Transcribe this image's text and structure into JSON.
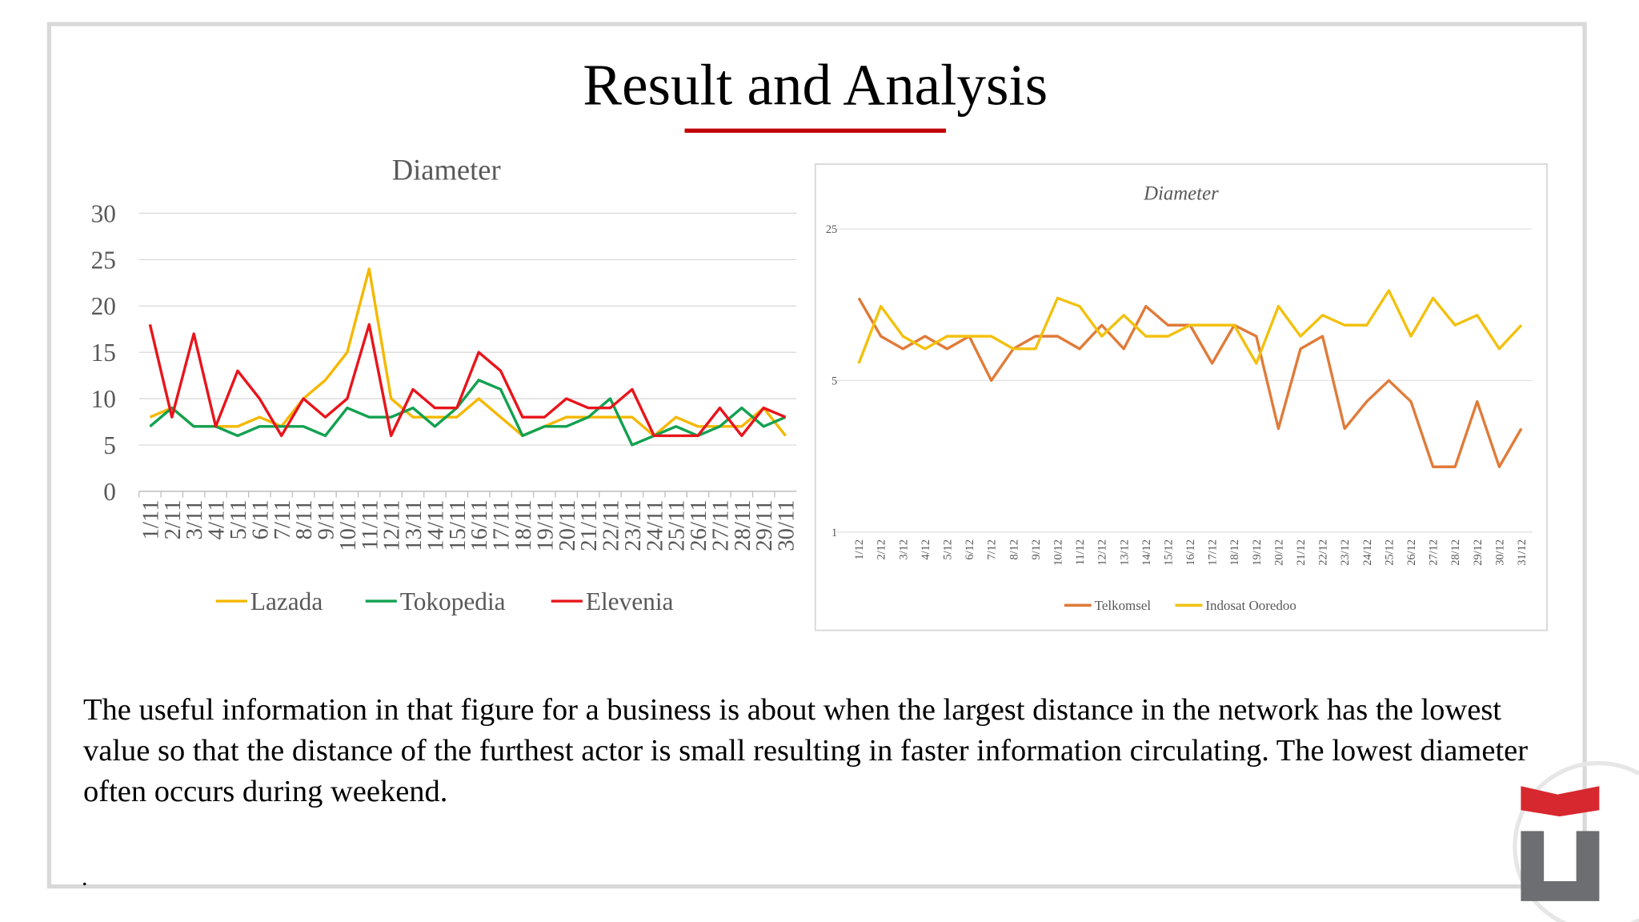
{
  "title": "Result and Analysis",
  "body": "The useful information in that figure for a business is about when the largest distance in the network has the lowest value so that the distance of the furthest actor is small resulting in faster information circulating. The lowest diameter often occurs during weekend.",
  "footnote": ".",
  "chart_data": [
    {
      "type": "line",
      "title": "Diameter",
      "categories": [
        "1/11",
        "2/11",
        "3/11",
        "4/11",
        "5/11",
        "6/11",
        "7/11",
        "8/11",
        "9/11",
        "10/11",
        "11/11",
        "12/11",
        "13/11",
        "14/11",
        "15/11",
        "16/11",
        "17/11",
        "18/11",
        "19/11",
        "20/11",
        "21/11",
        "22/11",
        "23/11",
        "24/11",
        "25/11",
        "26/11",
        "27/11",
        "28/11",
        "29/11",
        "30/11"
      ],
      "series": [
        {
          "name": "Lazada",
          "color": "#f5b800",
          "values": [
            8,
            9,
            7,
            7,
            7,
            8,
            7,
            10,
            12,
            15,
            24,
            10,
            8,
            8,
            8,
            10,
            8,
            6,
            7,
            8,
            8,
            8,
            8,
            6,
            8,
            7,
            7,
            7,
            9,
            6
          ]
        },
        {
          "name": "Tokopedia",
          "color": "#12a150",
          "values": [
            7,
            9,
            7,
            7,
            6,
            7,
            7,
            7,
            6,
            9,
            8,
            8,
            9,
            7,
            9,
            12,
            11,
            6,
            7,
            7,
            8,
            10,
            5,
            6,
            7,
            6,
            7,
            9,
            7,
            8
          ]
        },
        {
          "name": "Elevenia",
          "color": "#e8141b",
          "values": [
            18,
            8,
            17,
            7,
            13,
            10,
            6,
            10,
            8,
            10,
            18,
            6,
            11,
            9,
            9,
            15,
            13,
            8,
            8,
            10,
            9,
            9,
            11,
            6,
            6,
            6,
            9,
            6,
            9,
            8
          ]
        }
      ],
      "ylim": [
        0,
        30
      ],
      "yticks": [
        0,
        5,
        10,
        15,
        20,
        25,
        30
      ],
      "grid": true,
      "legend": "bottom"
    },
    {
      "type": "line",
      "title": "Diameter",
      "yscale": "log",
      "categories": [
        "1/12",
        "2/12",
        "3/12",
        "4/12",
        "5/12",
        "6/12",
        "7/12",
        "8/12",
        "9/12",
        "10/12",
        "11/12",
        "12/12",
        "13/12",
        "14/12",
        "15/12",
        "16/12",
        "17/12",
        "18/12",
        "19/12",
        "20/12",
        "21/12",
        "22/12",
        "23/12",
        "24/12",
        "25/12",
        "26/12",
        "27/12",
        "28/12",
        "29/12",
        "30/12",
        "31/12"
      ],
      "series": [
        {
          "name": "Telkomsel",
          "color": "#e07b39",
          "values": [
            12,
            8,
            7,
            8,
            7,
            8,
            5,
            7,
            8,
            8,
            7,
            9,
            7,
            11,
            9,
            9,
            6,
            9,
            8,
            3,
            7,
            8,
            3,
            4,
            5,
            4,
            2,
            2,
            4,
            2,
            3
          ]
        },
        {
          "name": "Indosat Ooredoo",
          "color": "#f2c10f",
          "values": [
            6,
            11,
            8,
            7,
            8,
            8,
            8,
            7,
            7,
            12,
            11,
            8,
            10,
            8,
            8,
            9,
            9,
            9,
            6,
            11,
            8,
            10,
            9,
            9,
            13,
            8,
            12,
            9,
            10,
            7,
            9
          ]
        }
      ],
      "ylim": [
        1,
        25
      ],
      "yticks": [
        1,
        5,
        25
      ],
      "grid": true,
      "legend": "bottom"
    }
  ]
}
